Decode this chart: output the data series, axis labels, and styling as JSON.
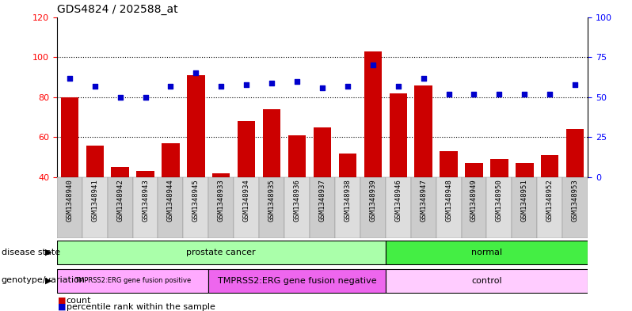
{
  "title": "GDS4824 / 202588_at",
  "samples": [
    "GSM1348940",
    "GSM1348941",
    "GSM1348942",
    "GSM1348943",
    "GSM1348944",
    "GSM1348945",
    "GSM1348933",
    "GSM1348934",
    "GSM1348935",
    "GSM1348936",
    "GSM1348937",
    "GSM1348938",
    "GSM1348939",
    "GSM1348946",
    "GSM1348947",
    "GSM1348948",
    "GSM1348949",
    "GSM1348950",
    "GSM1348951",
    "GSM1348952",
    "GSM1348953"
  ],
  "counts": [
    80,
    56,
    45,
    43,
    57,
    91,
    42,
    68,
    74,
    61,
    65,
    52,
    103,
    82,
    86,
    53,
    47,
    49,
    47,
    51,
    64
  ],
  "percentiles": [
    62,
    57,
    50,
    50,
    57,
    65,
    57,
    58,
    59,
    60,
    56,
    57,
    70,
    57,
    62,
    52,
    52,
    52,
    52,
    52,
    58
  ],
  "ylim_left": [
    40,
    120
  ],
  "ylim_right": [
    0,
    100
  ],
  "yticks_left": [
    40,
    60,
    80,
    100,
    120
  ],
  "yticks_right": [
    0,
    25,
    50,
    75,
    100
  ],
  "bar_color": "#cc0000",
  "dot_color": "#0000cc",
  "xticklabel_bg_even": "#cccccc",
  "xticklabel_bg_odd": "#dddddd",
  "disease_state_groups": [
    {
      "label": "prostate cancer",
      "start": 0,
      "end": 12,
      "color": "#aaffaa"
    },
    {
      "label": "normal",
      "start": 13,
      "end": 20,
      "color": "#44ee44"
    }
  ],
  "genotype_groups": [
    {
      "label": "TMPRSS2:ERG gene fusion positive",
      "start": 0,
      "end": 5,
      "color": "#ffaaff",
      "fontsize": 6
    },
    {
      "label": "TMPRSS2:ERG gene fusion negative",
      "start": 6,
      "end": 12,
      "color": "#ee66ee",
      "fontsize": 8
    },
    {
      "label": "control",
      "start": 13,
      "end": 20,
      "color": "#ffccff",
      "fontsize": 8
    }
  ],
  "left_label_disease": "disease state",
  "left_label_genotype": "genotype/variation",
  "legend_count": "count",
  "legend_percentile": "percentile rank within the sample",
  "grid_dotted_at": [
    60,
    80,
    100
  ]
}
